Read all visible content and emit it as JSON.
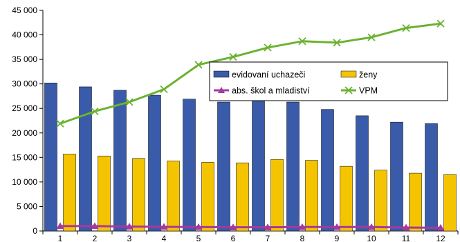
{
  "chart_data": {
    "type": "bar",
    "categories": [
      "1",
      "2",
      "3",
      "4",
      "5",
      "6",
      "7",
      "8",
      "9",
      "10",
      "11",
      "12"
    ],
    "ylim": [
      0,
      45000
    ],
    "yticks": [
      0,
      5000,
      10000,
      15000,
      20000,
      25000,
      30000,
      35000,
      40000,
      45000
    ],
    "ytick_labels": [
      "0",
      "5 000",
      "10 000",
      "15 000",
      "20 000",
      "25 000",
      "30 000",
      "35 000",
      "40 000",
      "45 000"
    ],
    "grid": false,
    "legend_position": "center-right",
    "series": [
      {
        "name": "evidovaní uchazeči",
        "type": "bar",
        "color": "#3A5BA9",
        "values": [
          30200,
          29400,
          28700,
          27700,
          26900,
          26300,
          26900,
          26300,
          24800,
          23500,
          22200,
          21900
        ]
      },
      {
        "name": "ženy",
        "type": "bar",
        "color": "#F5C400",
        "values": [
          15700,
          15300,
          14800,
          14300,
          14000,
          13900,
          14600,
          14400,
          13200,
          12400,
          11800,
          11500
        ]
      },
      {
        "name": "abs. škol a mladiství",
        "type": "line",
        "marker": "triangle",
        "color": "#A8389C",
        "values": [
          1000,
          1000,
          900,
          850,
          800,
          750,
          750,
          800,
          800,
          800,
          700,
          650
        ]
      },
      {
        "name": "VPM",
        "type": "line",
        "marker": "x",
        "color": "#6BB230",
        "values": [
          21900,
          24400,
          26300,
          28900,
          33900,
          35500,
          37400,
          38700,
          38400,
          39500,
          41400,
          42300
        ]
      }
    ],
    "legend_order": [
      0,
      1,
      2,
      3
    ]
  }
}
